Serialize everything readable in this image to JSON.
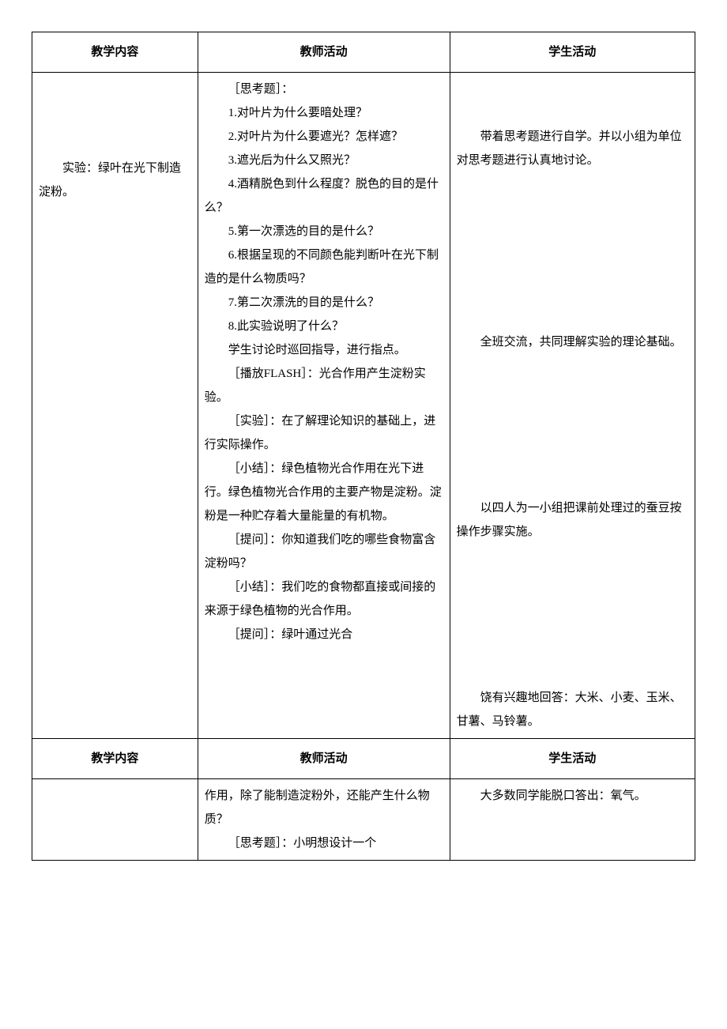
{
  "headers": {
    "col1": "教学内容",
    "col2": "教师活动",
    "col3": "学生活动"
  },
  "row1": {
    "col1_line": "实验：绿叶在光下制造淀粉。",
    "col2_lines": [
      "［思考题］：",
      "1.对叶片为什么要暗处理？",
      "2.对叶片为什么要遮光？怎样遮？",
      "3.遮光后为什么又照光？",
      "4.酒精脱色到什么程度？脱色的目的是什么？",
      "5.第一次漂选的目的是什么？",
      "6.根据呈现的不同颜色能判断叶在光下制造的是什么物质吗？",
      "7.第二次漂洗的目的是什么？",
      "8.此实验说明了什么？",
      "学生讨论时巡回指导，进行指点。",
      "［播放FLASH］：光合作用产生淀粉实验。",
      "［实验］：在了解理论知识的基础上，进行实际操作。",
      "［小结］：绿色植物光合作用在光下进行。绿色植物光合作用的主要产物是淀粉。淀粉是一种贮存着大量能量的有机物。",
      "［提问］：你知道我们吃的哪些食物富含淀粉吗？",
      "［小结］：我们吃的食物都直接或间接的来源于绿色植物的光合作用。",
      "［提问］：绿叶通过光合"
    ],
    "col3_para1": "带着思考题进行自学。并以小组为单位对思考题进行认真地讨论。",
    "col3_para2": "全班交流，共同理解实验的理论基础。",
    "col3_para3": "以四人为一小组把课前处理过的蚕豆按操作步骤实施。",
    "col3_para4": "饶有兴趣地回答：大米、小麦、玉米、甘薯、马铃薯。"
  },
  "row2": {
    "col2_lines": [
      "作用，除了能制造淀粉外，还能产生什么物质？",
      "［思考题］：小明想设计一个"
    ],
    "col3_para1": "大多数同学能脱口答出：氧气。"
  }
}
